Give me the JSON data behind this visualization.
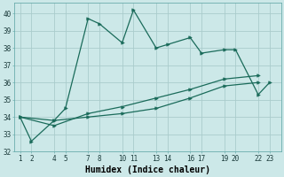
{
  "xlabel": "Humidex (Indice chaleur)",
  "ylabel": "",
  "background_color": "#cce8e8",
  "grid_color": "#aacccc",
  "line_color": "#1a6b5a",
  "xlim": [
    0.5,
    24
  ],
  "ylim": [
    32,
    40.6
  ],
  "xtick_positions": [
    1,
    2,
    4,
    5,
    7,
    8,
    10,
    11,
    13,
    14,
    16,
    17,
    19,
    20,
    22,
    23
  ],
  "xtick_labels": [
    "1",
    "2",
    "4",
    "5",
    "7",
    "8",
    "10",
    "11",
    "13",
    "14",
    "16",
    "17",
    "19",
    "20",
    "22",
    "23"
  ],
  "yticks": [
    32,
    33,
    34,
    35,
    36,
    37,
    38,
    39,
    40
  ],
  "series": [
    {
      "x": [
        1,
        4,
        7,
        10,
        13,
        16,
        19,
        22
      ],
      "y": [
        34.0,
        33.8,
        34.0,
        34.2,
        34.5,
        35.1,
        35.8,
        36.0
      ]
    },
    {
      "x": [
        1,
        4,
        7,
        10,
        13,
        16,
        19,
        22
      ],
      "y": [
        34.0,
        33.5,
        34.2,
        34.6,
        35.1,
        35.6,
        36.2,
        36.4
      ]
    },
    {
      "x": [
        1,
        2,
        4,
        5,
        7,
        8,
        10,
        11,
        13,
        14,
        16,
        17,
        19,
        20,
        22,
        23
      ],
      "y": [
        34.0,
        32.6,
        33.8,
        34.5,
        39.7,
        39.4,
        38.3,
        40.2,
        38.0,
        38.2,
        38.6,
        37.7,
        37.9,
        37.9,
        35.3,
        36.0
      ]
    }
  ],
  "marker": ">",
  "markersize": 2.5,
  "linewidth": 0.9,
  "tick_fontsize": 5.5,
  "xlabel_fontsize": 7.0
}
